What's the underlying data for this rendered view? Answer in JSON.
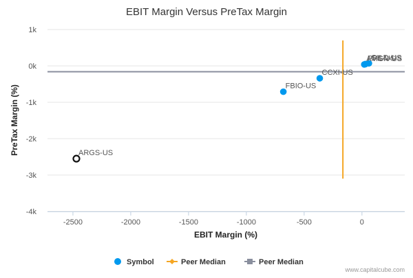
{
  "chart_data": {
    "type": "scatter",
    "title": "EBIT Margin Versus PreTax Margin",
    "xlabel": "EBIT Margin (%)",
    "ylabel": "PreTax Margin (%)",
    "xlim": [
      -2720,
      370
    ],
    "ylim": [
      -4000,
      1000
    ],
    "x_ticks": [
      -2500,
      -2000,
      -1500,
      -1000,
      -500,
      0
    ],
    "y_ticks": [
      {
        "value": 1000,
        "label": "1k"
      },
      {
        "value": 0,
        "label": "0k"
      },
      {
        "value": -1000,
        "label": "-1k"
      },
      {
        "value": -2000,
        "label": "-2k"
      },
      {
        "value": -3000,
        "label": "-3k"
      },
      {
        "value": -4000,
        "label": "-4k"
      }
    ],
    "points": [
      {
        "label": "AMGN-US",
        "x": 20,
        "y": 40,
        "highlight": false
      },
      {
        "label": "PFE-US",
        "x": 30,
        "y": 50,
        "highlight": false
      },
      {
        "label": "GILD-US",
        "x": 60,
        "y": 70,
        "highlight": false
      },
      {
        "label": "CCXI-US",
        "x": -365,
        "y": -340,
        "highlight": false
      },
      {
        "label": "FBIO-US",
        "x": -680,
        "y": -710,
        "highlight": false
      },
      {
        "label": "ARGS-US",
        "x": -2470,
        "y": -2550,
        "highlight": true
      }
    ],
    "peer_median_x": {
      "value": -165,
      "y_range": [
        700,
        -3100
      ]
    },
    "peer_median_y": {
      "value": -160
    },
    "legend": [
      {
        "label": "Symbol",
        "kind": "dot",
        "color": "#0099ee"
      },
      {
        "label": "Peer Median",
        "kind": "line-diamond",
        "color": "#f5a623"
      },
      {
        "label": "Peer Median",
        "kind": "line-square",
        "color": "#8a8f9e"
      }
    ],
    "colors": {
      "symbol": "#0099ee",
      "peer_median_x": "#f5a623",
      "peer_median_y": "#8a8f9e",
      "highlight_stroke": "#111111"
    }
  },
  "credit": "www.capitalcube.com"
}
